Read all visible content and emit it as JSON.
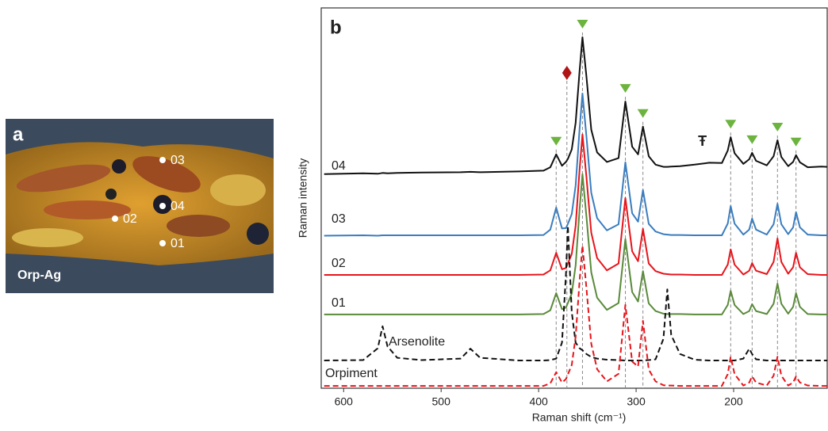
{
  "image_panel": {
    "label": "a",
    "caption": "Orp-Ag",
    "points": [
      "03",
      "04",
      "02",
      "01"
    ]
  },
  "chart_data": {
    "type": "line",
    "panel_label": "b",
    "xlabel": "Raman shift (cm⁻¹)",
    "ylabel": "Raman intensity",
    "xlim": [
      623,
      104
    ],
    "ylim": [
      0,
      100
    ],
    "xticks": [
      600,
      500,
      400,
      300,
      200
    ],
    "x": [
      620,
      580,
      565,
      560,
      555,
      545,
      520,
      480,
      470,
      460,
      420,
      395,
      388,
      382,
      376,
      372,
      370,
      366,
      362,
      358,
      355,
      351,
      346,
      340,
      330,
      318,
      311,
      304,
      298,
      293,
      287,
      280,
      272,
      268,
      264,
      255,
      240,
      225,
      212,
      206,
      203,
      199,
      190,
      184,
      181,
      177,
      166,
      159,
      155,
      151,
      144,
      139,
      136,
      132,
      124,
      110,
      104
    ],
    "series": [
      {
        "name": "04",
        "color": "#111111",
        "dashed": false,
        "values": [
          56.3,
          56.5,
          56.4,
          56.6,
          56.5,
          56.6,
          56.7,
          56.8,
          56.9,
          56.8,
          57,
          57.2,
          58.1,
          61.5,
          58.5,
          59.5,
          60.3,
          62.8,
          69.8,
          83.5,
          92.3,
          82,
          68,
          62,
          59.5,
          60.5,
          75.4,
          63.5,
          61.5,
          68.8,
          61,
          58.8,
          58.2,
          58.2,
          58.3,
          58.4,
          58.8,
          59.3,
          59.2,
          62.5,
          66,
          61.8,
          59,
          60.2,
          61.9,
          59.8,
          58.6,
          61,
          65.2,
          60.8,
          58.4,
          59.5,
          61.3,
          59.4,
          58.1,
          58.3,
          58.2
        ]
      },
      {
        "name": "03",
        "color": "#3a7dbf",
        "dashed": false,
        "values": [
          40.1,
          40.2,
          40.1,
          40.2,
          40.2,
          40.2,
          40.2,
          40.2,
          40.2,
          40.2,
          40.2,
          40.3,
          41.7,
          47.5,
          42,
          42.1,
          43.2,
          45.8,
          53.3,
          68.2,
          77.5,
          66.3,
          51.4,
          44.7,
          41.5,
          43.1,
          59.4,
          46,
          43.8,
          52.1,
          43.2,
          41.2,
          40.5,
          40.4,
          40.3,
          40.3,
          40.2,
          40.2,
          40.2,
          43.3,
          47.9,
          43.3,
          40.4,
          41.7,
          44.6,
          41.7,
          40.4,
          43.1,
          48.5,
          43.1,
          40.5,
          42.3,
          46.3,
          42.3,
          40.4,
          40.2,
          40.2
        ]
      },
      {
        "name": "02",
        "color": "#e8141b",
        "dashed": false,
        "values": [
          29.8,
          29.8,
          29.8,
          29.8,
          29.8,
          29.8,
          29.8,
          29.8,
          29.8,
          29.8,
          29.8,
          29.9,
          31,
          35.6,
          31.3,
          31.6,
          32.8,
          35.3,
          42.7,
          57.5,
          66.7,
          55.6,
          40.9,
          34.2,
          31,
          32.8,
          50,
          36,
          33.4,
          41.9,
          32.8,
          30.8,
          30.1,
          30,
          29.9,
          29.9,
          29.8,
          29.8,
          29.8,
          32.5,
          36.5,
          32.5,
          29.9,
          30.9,
          32.9,
          30.9,
          30,
          33.2,
          39.4,
          33.2,
          30.1,
          31.8,
          35.6,
          31.8,
          30,
          29.8,
          29.8
        ]
      },
      {
        "name": "01",
        "color": "#5a8a3a",
        "dashed": false,
        "values": [
          19.4,
          19.4,
          19.4,
          19.4,
          19.4,
          19.4,
          19.4,
          19.4,
          19.4,
          19.4,
          19.4,
          19.5,
          20.5,
          25,
          20.8,
          21.2,
          22.4,
          24.9,
          32.3,
          47.1,
          56.3,
          45.2,
          30.5,
          23.8,
          20.6,
          22.4,
          39.2,
          25.3,
          22.8,
          30.8,
          22.3,
          20.3,
          19.6,
          19.5,
          19.5,
          19.5,
          19.4,
          19.4,
          19.4,
          21.9,
          25.6,
          21.9,
          19.5,
          20.3,
          22.1,
          20.3,
          19.5,
          22.2,
          27.5,
          22.2,
          19.6,
          21.4,
          25,
          21.4,
          19.5,
          19.4,
          19.4
        ]
      },
      {
        "name": "Arsenolite",
        "color": "#111111",
        "dashed": true,
        "values": [
          7.3,
          7.4,
          10.5,
          16.3,
          11,
          8,
          7.4,
          7.8,
          10.4,
          8,
          7.3,
          7.3,
          7.4,
          7.8,
          12,
          30,
          42.7,
          20,
          12,
          10.5,
          10,
          9,
          8.2,
          7.8,
          7.5,
          7.4,
          7.3,
          7.3,
          7.3,
          7.3,
          7.4,
          7.6,
          13,
          26,
          14,
          9,
          7.5,
          7.3,
          7.3,
          7.3,
          7.3,
          7.3,
          7.8,
          10.4,
          9,
          7.6,
          7.3,
          7.3,
          7.3,
          7.3,
          7.3,
          7.3,
          7.3,
          7.3,
          7.3,
          7.3,
          7.3
        ]
      },
      {
        "name": "Orpiment",
        "color": "#e8141b",
        "dashed": true,
        "values": [
          0.6,
          0.6,
          0.6,
          0.6,
          0.6,
          0.6,
          0.6,
          0.6,
          0.6,
          0.6,
          0.6,
          0.6,
          1.3,
          4.2,
          1.5,
          2.4,
          3.6,
          6.1,
          13.5,
          28.3,
          37.5,
          26.4,
          11.7,
          5,
          1.8,
          3.8,
          21.9,
          7,
          5.7,
          17.7,
          4.9,
          1.8,
          0.8,
          0.7,
          0.7,
          0.6,
          0.6,
          0.6,
          0.6,
          3.7,
          8.3,
          3.7,
          0.7,
          1.5,
          3.1,
          1.5,
          0.7,
          3.3,
          8.3,
          3.3,
          0.7,
          1.5,
          3.1,
          1.5,
          0.7,
          0.6,
          0.6
        ]
      }
    ],
    "peak_markers": {
      "color": "#6db33f",
      "positions": [
        382,
        355,
        311,
        293,
        203,
        181,
        155,
        136
      ]
    },
    "diamond_marker": {
      "color": "#b01515",
      "position": 371
    },
    "symbol_marker": {
      "label": "Ŧ",
      "position": 232
    }
  }
}
